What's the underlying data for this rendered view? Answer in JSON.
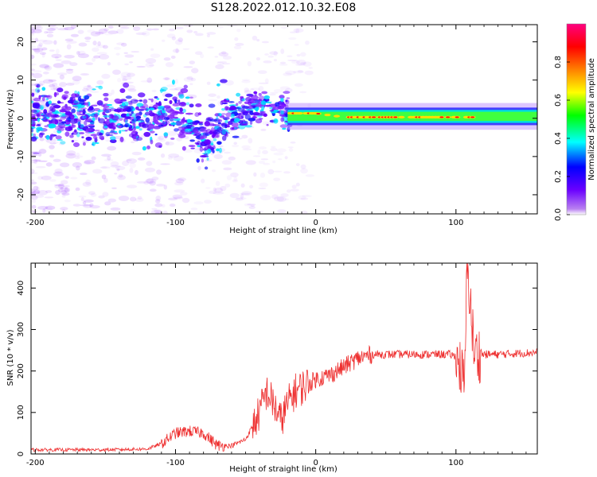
{
  "figure": {
    "title": "S128.2022.012.10.32.E08"
  },
  "chart_data": [
    {
      "type": "heatmap",
      "xlabel": "Height of straight line (km)",
      "ylabel": "Frequency (Hz)",
      "xlim": [
        -203,
        158
      ],
      "ylim": [
        -25,
        24.5
      ],
      "x_ticks": [
        -200,
        -100,
        0,
        100
      ],
      "x_tick_labels": [
        "-200",
        "-100",
        "0",
        "100"
      ],
      "y_ticks": [
        -20,
        -10,
        0,
        10,
        20
      ],
      "y_tick_labels": [
        "-20",
        "-10",
        "0",
        "10",
        "20"
      ],
      "colorbar": {
        "label": "Normalized spectral amplitude",
        "range": [
          0,
          1
        ],
        "ticks": [
          0.0,
          0.2,
          0.4,
          0.6,
          0.8
        ],
        "tick_labels": [
          "0.0",
          "0.2",
          "0.4",
          "0.6",
          "0.8"
        ],
        "colors": [
          "#ffffff",
          "#8a2be2",
          "#0000ff",
          "#00ffff",
          "#00ff00",
          "#ffff00",
          "#ff7f00",
          "#ff0000",
          "#ff007f"
        ]
      },
      "ridge_frequency": {
        "x": [
          -200,
          -180,
          -160,
          -140,
          -120,
          -100,
          -85,
          -78,
          -70,
          -60,
          -50,
          -40,
          -30,
          -20,
          -10,
          0,
          20,
          50,
          80,
          100,
          120,
          158
        ],
        "y": [
          0,
          1,
          0,
          1,
          0,
          1,
          -3,
          -6,
          -1,
          0,
          2,
          3,
          3,
          1,
          1,
          1,
          0,
          0,
          0,
          0,
          0,
          0
        ]
      },
      "grid": false
    },
    {
      "type": "line",
      "xlabel": "Height of straight line (km)",
      "ylabel": "SNR (10 * v/v)",
      "xlim": [
        -203,
        158
      ],
      "ylim": [
        0,
        460
      ],
      "x_ticks": [
        -200,
        -100,
        0,
        100
      ],
      "x_tick_labels": [
        "-200",
        "-100",
        "0",
        "100"
      ],
      "y_ticks": [
        0,
        100,
        200,
        300,
        400
      ],
      "y_tick_labels": [
        "0",
        "100",
        "200",
        "300",
        "400"
      ],
      "series": [
        {
          "color": "#ee3030",
          "x": [
            -203,
            -180,
            -150,
            -120,
            -110,
            -100,
            -90,
            -80,
            -70,
            -60,
            -50,
            -40,
            -35,
            -30,
            -25,
            -20,
            -15,
            -10,
            -5,
            0,
            10,
            20,
            30,
            40,
            60,
            80,
            95,
            100,
            104,
            106,
            108,
            110,
            113,
            118,
            130,
            158
          ],
          "y": [
            10,
            10,
            10,
            12,
            25,
            50,
            55,
            50,
            20,
            20,
            35,
            100,
            150,
            120,
            80,
            120,
            150,
            160,
            170,
            180,
            190,
            210,
            230,
            240,
            240,
            240,
            240,
            235,
            200,
            150,
            460,
            380,
            240,
            240,
            240,
            245
          ]
        }
      ],
      "grid": false
    }
  ]
}
